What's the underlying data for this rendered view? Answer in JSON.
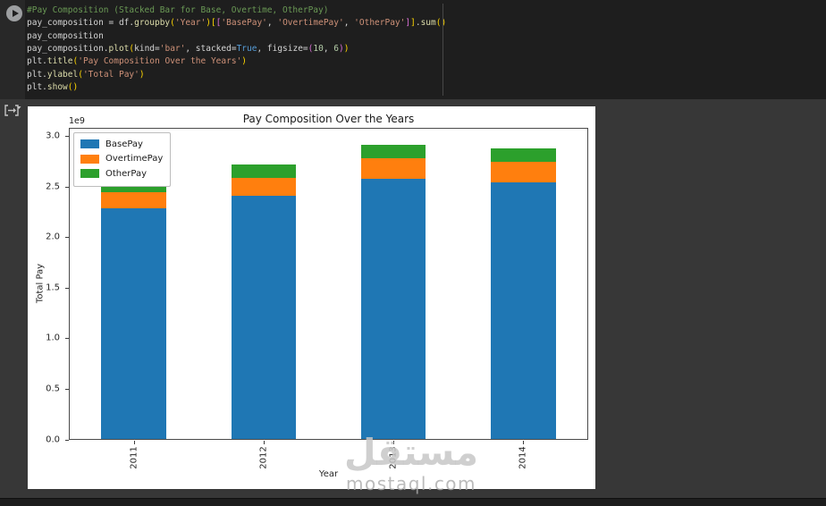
{
  "colors": {
    "code_bg": "#1e1e1e",
    "output_bg": "#373737",
    "figure_bg": "#ffffff",
    "base_pay": "#1f77b4",
    "overtime_pay": "#ff7f0e",
    "other_pay": "#2ca02c"
  },
  "code_cell": {
    "run_button": "run-cell",
    "lines": [
      [
        {
          "c": "cm",
          "t": "#Pay Composition (Stacked Bar for Base, Overtime, OtherPay)"
        }
      ],
      [
        {
          "c": "tx",
          "t": "pay_composition = df."
        },
        {
          "c": "fn",
          "t": "groupby"
        },
        {
          "c": "b1",
          "t": "("
        },
        {
          "c": "st",
          "t": "'Year'"
        },
        {
          "c": "b1",
          "t": ")["
        },
        {
          "c": "b2",
          "t": "["
        },
        {
          "c": "st",
          "t": "'BasePay'"
        },
        {
          "c": "tx",
          "t": ", "
        },
        {
          "c": "st",
          "t": "'OvertimePay'"
        },
        {
          "c": "tx",
          "t": ", "
        },
        {
          "c": "st",
          "t": "'OtherPay'"
        },
        {
          "c": "b2",
          "t": "]"
        },
        {
          "c": "b1",
          "t": "]"
        },
        {
          "c": "tx",
          "t": "."
        },
        {
          "c": "fn",
          "t": "sum"
        },
        {
          "c": "b1",
          "t": "()"
        }
      ],
      [
        {
          "c": "tx",
          "t": "pay_composition"
        }
      ],
      [
        {
          "c": "tx",
          "t": "pay_composition."
        },
        {
          "c": "fn",
          "t": "plot"
        },
        {
          "c": "b1",
          "t": "("
        },
        {
          "c": "tx",
          "t": "kind="
        },
        {
          "c": "st",
          "t": "'bar'"
        },
        {
          "c": "tx",
          "t": ", stacked="
        },
        {
          "c": "kw",
          "t": "True"
        },
        {
          "c": "tx",
          "t": ", figsize="
        },
        {
          "c": "b2",
          "t": "("
        },
        {
          "c": "nu",
          "t": "10"
        },
        {
          "c": "tx",
          "t": ", "
        },
        {
          "c": "nu",
          "t": "6"
        },
        {
          "c": "b2",
          "t": ")"
        },
        {
          "c": "b1",
          "t": ")"
        }
      ],
      [
        {
          "c": "tx",
          "t": "plt."
        },
        {
          "c": "fn",
          "t": "title"
        },
        {
          "c": "b1",
          "t": "("
        },
        {
          "c": "st",
          "t": "'Pay Composition Over the Years'"
        },
        {
          "c": "b1",
          "t": ")"
        }
      ],
      [
        {
          "c": "tx",
          "t": "plt."
        },
        {
          "c": "fn",
          "t": "ylabel"
        },
        {
          "c": "b1",
          "t": "("
        },
        {
          "c": "st",
          "t": "'Total Pay'"
        },
        {
          "c": "b1",
          "t": ")"
        }
      ],
      [
        {
          "c": "tx",
          "t": "plt."
        },
        {
          "c": "fn",
          "t": "show"
        },
        {
          "c": "b1",
          "t": "()"
        }
      ]
    ]
  },
  "output": {
    "mime_icon": "change-output-presentation"
  },
  "chart_data": {
    "type": "bar",
    "stacked": true,
    "title": "Pay Composition Over the Years",
    "xlabel": "Year",
    "ylabel": "Total Pay",
    "offset_text": "1e9",
    "unit": "1e9",
    "categories": [
      "2011",
      "2012",
      "2013",
      "2014"
    ],
    "series": [
      {
        "name": "BasePay",
        "color": "#1f77b4",
        "values": [
          2.29,
          2.41,
          2.58,
          2.54
        ]
      },
      {
        "name": "OvertimePay",
        "color": "#ff7f0e",
        "values": [
          0.16,
          0.18,
          0.2,
          0.21
        ]
      },
      {
        "name": "OtherPay",
        "color": "#2ca02c",
        "values": [
          0.13,
          0.13,
          0.14,
          0.13
        ]
      }
    ],
    "totals": [
      2.58,
      2.72,
      2.92,
      2.88
    ],
    "ylim": [
      0,
      3.084
    ],
    "yticks": [
      0.0,
      0.5,
      1.0,
      1.5,
      2.0,
      2.5,
      3.0
    ],
    "grid": false,
    "legend_position": "upper left"
  },
  "watermark": {
    "arabic": "مستقل",
    "latin": "mostaql.com"
  }
}
